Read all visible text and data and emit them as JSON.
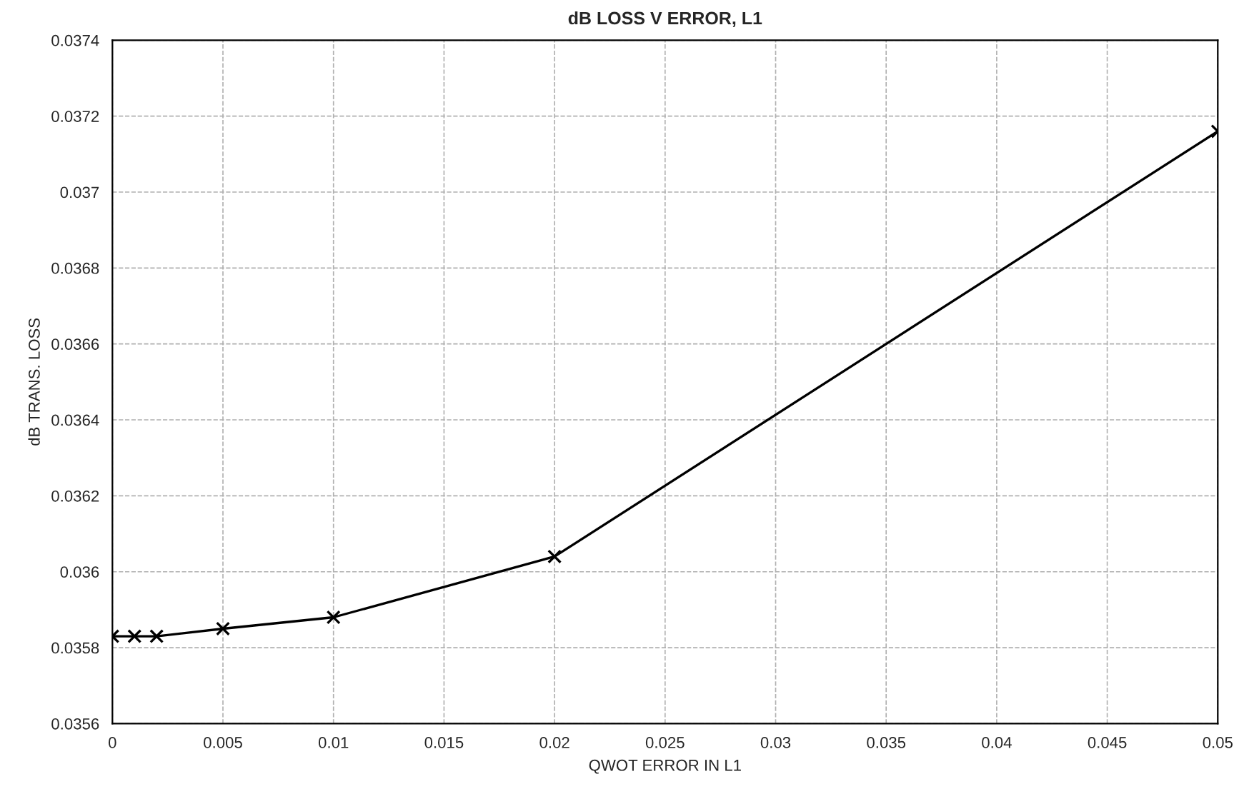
{
  "chart_data": {
    "type": "line",
    "title": "dB LOSS V ERROR, L1",
    "xlabel": "QWOT ERROR IN L1",
    "ylabel": "dB TRANS. LOSS",
    "x": [
      0,
      0.001,
      0.002,
      0.005,
      0.01,
      0.02,
      0.05
    ],
    "series": [
      {
        "color": "#000000",
        "values": [
          0.03583,
          0.03583,
          0.03583,
          0.03585,
          0.03588,
          0.03604,
          0.03716
        ]
      }
    ],
    "xlim": [
      0,
      0.05
    ],
    "xticks": [
      0,
      0.005,
      0.01,
      0.015,
      0.02,
      0.025,
      0.03,
      0.035,
      0.04,
      0.045,
      0.05
    ],
    "ylim": [
      0.0356,
      0.0374
    ],
    "yticks": [
      0.0356,
      0.0358,
      0.036,
      0.0362,
      0.0364,
      0.0366,
      0.0368,
      0.037,
      0.0372,
      0.0374
    ],
    "grid": true,
    "marker": "cross",
    "line_style": "solid",
    "legend": false
  }
}
